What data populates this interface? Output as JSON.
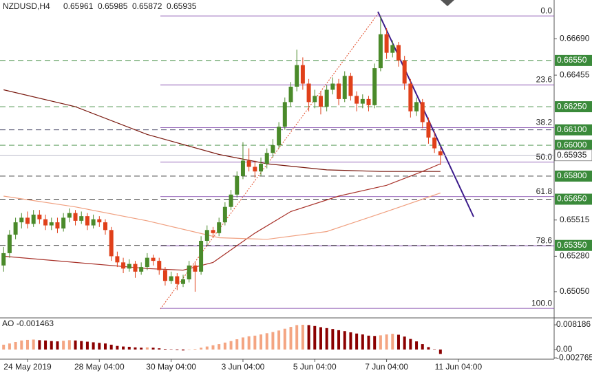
{
  "chart_data": {
    "type": "candlestick",
    "symbol": "NZDUSD,H4",
    "up_color": "#4a8a2a",
    "down_color": "#e0401a",
    "ylim": [
      0.6488,
      0.6692
    ],
    "xlim": [
      -0.6,
      92
    ],
    "yticks": [
      {
        "value": 0.6669,
        "label": "0.66690"
      },
      0.66455,
      0.65515,
      {
        "value": 0.6528,
        "label": "0.65280"
      },
      {
        "value": 0.6505,
        "label": "0.65050"
      }
    ],
    "xticks": [
      {
        "value": 4,
        "label": "24 May 2019"
      },
      {
        "value": 16,
        "label": "28 May 04:00"
      },
      {
        "value": 28,
        "label": "30 May 04:00"
      },
      {
        "value": 40,
        "label": "3 Jun 04:00"
      },
      {
        "value": 52,
        "label": "5 Jun 04:00"
      },
      {
        "value": 64,
        "label": "7 Jun 04:00"
      },
      {
        "value": 76,
        "label": "11 Jun 04:00"
      }
    ],
    "levels": [
      {
        "value": 0.6655,
        "label": "0.66550",
        "line_color": "#3c8a3c"
      },
      {
        "value": 0.6625,
        "label": "0.66250",
        "line_color": "#3c8a3c"
      },
      {
        "value": 0.661,
        "label": "0.66100",
        "line_color": "#333355"
      },
      {
        "value": 0.66,
        "label": "0.66000",
        "line_color": "#3c8a3c"
      },
      {
        "value": 0.658,
        "label": "0.65800",
        "line_color": "#333333"
      },
      {
        "value": 0.6565,
        "label": "0.65650",
        "line_color": "#333333"
      },
      {
        "value": 0.6535,
        "label": "0.65350",
        "line_color": "#333333"
      }
    ],
    "level_box_color": "#3a8a3a",
    "fib": {
      "high": 0.66839,
      "low": 0.64942,
      "color": "#7030a0",
      "levels": [
        {
          "value": 0,
          "label": "0.0"
        },
        23.6,
        38.2,
        {
          "value": 50,
          "label": "50.0"
        },
        61.8,
        78.6,
        {
          "value": 100,
          "label": "100.0"
        }
      ]
    },
    "ma": [
      {
        "color": "#7a1a10",
        "idx": [
          0,
          12,
          24,
          36,
          44,
          54,
          63,
          73
        ],
        "values": [
          0.6636,
          0.6625,
          0.6607,
          0.6594,
          0.6588,
          0.6584,
          0.6583,
          0.6583
        ]
      },
      {
        "color": "#a8322a",
        "idx": [
          0,
          12,
          24,
          30,
          35,
          42,
          48,
          56,
          64,
          70,
          73
        ],
        "values": [
          0.6528,
          0.6524,
          0.652,
          0.6519,
          0.6524,
          0.6543,
          0.6557,
          0.6567,
          0.6574,
          0.6583,
          0.6588
        ]
      },
      {
        "color": "#f0a080",
        "idx": [
          0,
          12,
          24,
          36,
          44,
          54,
          64,
          73
        ],
        "values": [
          0.6567,
          0.656,
          0.6551,
          0.654,
          0.6539,
          0.6544,
          0.6557,
          0.6569
        ]
      }
    ],
    "ohlc": [
      [
        0.6522,
        0.6534,
        0.6518,
        0.653
      ],
      [
        0.653,
        0.6545,
        0.6527,
        0.6542
      ],
      [
        0.6542,
        0.6553,
        0.6539,
        0.655
      ],
      [
        0.655,
        0.6556,
        0.6546,
        0.6553
      ],
      [
        0.6553,
        0.6557,
        0.6546,
        0.6549
      ],
      [
        0.6549,
        0.6558,
        0.6547,
        0.6555
      ],
      [
        0.6555,
        0.6558,
        0.6549,
        0.6552
      ],
      [
        0.6552,
        0.6555,
        0.6545,
        0.6548
      ],
      [
        0.6548,
        0.6553,
        0.6545,
        0.655
      ],
      [
        0.655,
        0.6553,
        0.6543,
        0.6546
      ],
      [
        0.6546,
        0.6556,
        0.6544,
        0.6553
      ],
      [
        0.6553,
        0.6559,
        0.655,
        0.6556
      ],
      [
        0.6556,
        0.6558,
        0.6548,
        0.6551
      ],
      [
        0.6551,
        0.6557,
        0.6549,
        0.6554
      ],
      [
        0.6554,
        0.6556,
        0.6545,
        0.6548
      ],
      [
        0.6548,
        0.6555,
        0.6546,
        0.6552
      ],
      [
        0.6552,
        0.6554,
        0.6547,
        0.655
      ],
      [
        0.655,
        0.6552,
        0.6542,
        0.6545
      ],
      [
        0.6545,
        0.6547,
        0.6525,
        0.6528
      ],
      [
        0.6528,
        0.6531,
        0.6521,
        0.6524
      ],
      [
        0.6524,
        0.6527,
        0.6517,
        0.652
      ],
      [
        0.652,
        0.6526,
        0.6518,
        0.6523
      ],
      [
        0.6523,
        0.6525,
        0.6514,
        0.6518
      ],
      [
        0.6518,
        0.6524,
        0.6516,
        0.6521
      ],
      [
        0.6521,
        0.653,
        0.6519,
        0.6527
      ],
      [
        0.6527,
        0.6529,
        0.6522,
        0.6525
      ],
      [
        0.6525,
        0.6527,
        0.6516,
        0.6519
      ],
      [
        0.6519,
        0.6521,
        0.6509,
        0.6512
      ],
      [
        0.6512,
        0.6518,
        0.651,
        0.6515
      ],
      [
        0.6515,
        0.6517,
        0.6506,
        0.651
      ],
      [
        0.651,
        0.6516,
        0.6508,
        0.6513
      ],
      [
        0.6513,
        0.6525,
        0.6511,
        0.6522
      ],
      [
        0.6522,
        0.6524,
        0.6505,
        0.6518
      ],
      [
        0.6518,
        0.6541,
        0.6516,
        0.6538
      ],
      [
        0.6538,
        0.6548,
        0.6535,
        0.6545
      ],
      [
        0.6545,
        0.6547,
        0.654,
        0.6543
      ],
      [
        0.6543,
        0.6553,
        0.6541,
        0.655
      ],
      [
        0.655,
        0.6563,
        0.6548,
        0.656
      ],
      [
        0.656,
        0.6571,
        0.6558,
        0.6568
      ],
      [
        0.6568,
        0.6583,
        0.6566,
        0.658
      ],
      [
        0.658,
        0.6602,
        0.6578,
        0.659
      ],
      [
        0.659,
        0.6598,
        0.6583,
        0.6586
      ],
      [
        0.6586,
        0.659,
        0.6579,
        0.6583
      ],
      [
        0.6583,
        0.6592,
        0.658,
        0.6588
      ],
      [
        0.6588,
        0.6598,
        0.6585,
        0.6595
      ],
      [
        0.6595,
        0.6604,
        0.6592,
        0.66
      ],
      [
        0.66,
        0.6615,
        0.6598,
        0.6612
      ],
      [
        0.6612,
        0.6631,
        0.661,
        0.6628
      ],
      [
        0.6628,
        0.6641,
        0.6625,
        0.6638
      ],
      [
        0.6638,
        0.6662,
        0.6635,
        0.6652
      ],
      [
        0.6652,
        0.6657,
        0.6636,
        0.664
      ],
      [
        0.664,
        0.6643,
        0.6622,
        0.6628
      ],
      [
        0.6628,
        0.6636,
        0.6624,
        0.6632
      ],
      [
        0.6632,
        0.6635,
        0.662,
        0.6625
      ],
      [
        0.6625,
        0.6639,
        0.6622,
        0.6636
      ],
      [
        0.6636,
        0.6644,
        0.6633,
        0.664
      ],
      [
        0.664,
        0.6643,
        0.6626,
        0.663
      ],
      [
        0.663,
        0.6648,
        0.6628,
        0.6645
      ],
      [
        0.6645,
        0.6647,
        0.6629,
        0.6632
      ],
      [
        0.6632,
        0.6635,
        0.6622,
        0.6627
      ],
      [
        0.6627,
        0.6633,
        0.6624,
        0.663
      ],
      [
        0.663,
        0.6632,
        0.6622,
        0.6626
      ],
      [
        0.6626,
        0.6653,
        0.6624,
        0.665
      ],
      [
        0.665,
        0.6684,
        0.6648,
        0.6672
      ],
      [
        0.6672,
        0.6676,
        0.6656,
        0.666
      ],
      [
        0.666,
        0.6668,
        0.6657,
        0.6665
      ],
      [
        0.6665,
        0.6667,
        0.6651,
        0.6655
      ],
      [
        0.6655,
        0.6658,
        0.6636,
        0.664
      ],
      [
        0.664,
        0.6643,
        0.6618,
        0.6622
      ],
      [
        0.6622,
        0.6631,
        0.6619,
        0.6628
      ],
      [
        0.6628,
        0.663,
        0.6611,
        0.6615
      ],
      [
        0.6615,
        0.6618,
        0.6601,
        0.6605
      ],
      [
        0.6605,
        0.6609,
        0.6595,
        0.6598
      ],
      [
        0.65961,
        0.65985,
        0.65872,
        0.65935
      ]
    ],
    "ao": {
      "name": "AO",
      "up_color": "#f4a582",
      "down_color": "#8b0000",
      "ylim": [
        -0.0032,
        0.0098
      ],
      "yticks": [
        0.008186,
        {
          "value": 0,
          "label": "0.00"
        },
        -0.002765
      ],
      "values": [
        0.0016,
        0.002,
        0.0025,
        0.003,
        0.0032,
        0.0033,
        0.0031,
        0.003,
        0.0028,
        0.0027,
        0.0029,
        0.0031,
        0.003,
        0.0028,
        0.0026,
        0.0024,
        0.0022,
        0.002,
        0.0016,
        0.0012,
        0.001,
        0.0009,
        0.0007,
        0.0006,
        0.0007,
        0.0006,
        0.0004,
        0.0002,
        0.0001,
        -0.0002,
        -0.0003,
        -0.0001,
        0.0002,
        0.0006,
        0.001,
        0.0014,
        0.0018,
        0.0023,
        0.0028,
        0.0034,
        0.004,
        0.0044,
        0.0046,
        0.005,
        0.0054,
        0.0058,
        0.0063,
        0.0069,
        0.0075,
        0.0081,
        0.0082,
        0.0081,
        0.0078,
        0.0074,
        0.0071,
        0.0068,
        0.0064,
        0.0061,
        0.0057,
        0.0053,
        0.005,
        0.0046,
        0.0045,
        0.0047,
        0.005,
        0.0052,
        0.0049,
        0.0043,
        0.0035,
        0.0027,
        0.0018,
        0.0008,
        0.0001,
        -0.001463
      ]
    }
  }
}
